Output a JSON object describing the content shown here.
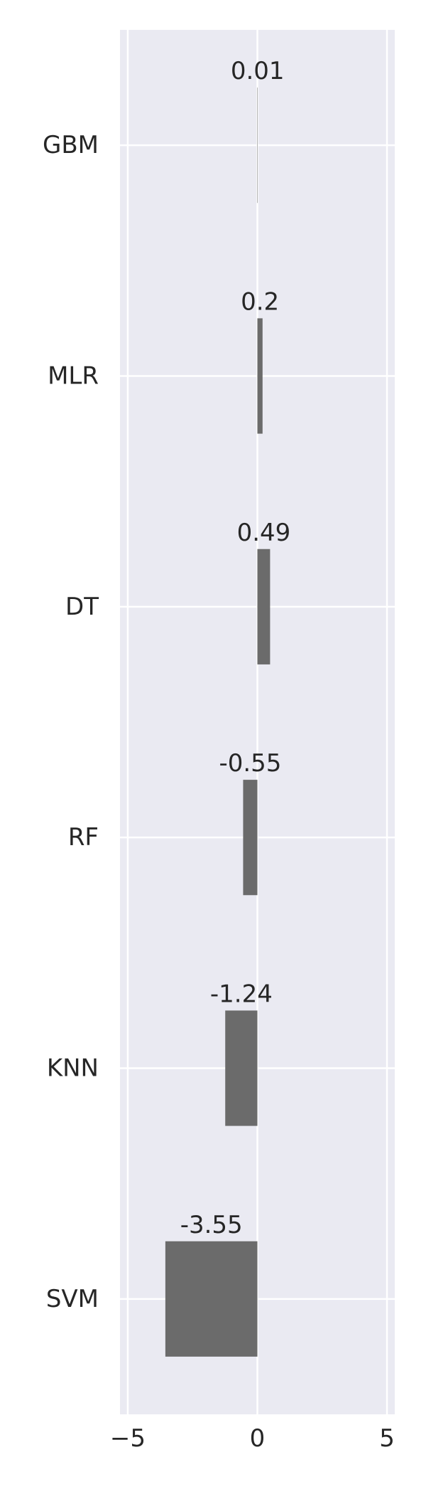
{
  "chart_data": {
    "type": "bar",
    "orientation": "horizontal",
    "categories": [
      "GBM",
      "MLR",
      "DT",
      "RF",
      "KNN",
      "SVM"
    ],
    "values": [
      0.01,
      0.2,
      0.49,
      -0.55,
      -1.24,
      -3.55
    ],
    "value_labels": [
      "0.01",
      "0.2",
      "0.49",
      "-0.55",
      "-1.24",
      "-3.55"
    ],
    "xlim": [
      -5.3,
      5.3
    ],
    "xticks": [
      -5,
      0,
      5
    ],
    "xtick_labels": [
      "−5",
      "0",
      "5"
    ],
    "grid": true,
    "background": "#eaeaf2",
    "bar_color": "#6b6b6b",
    "grid_color": "#ffffff"
  }
}
